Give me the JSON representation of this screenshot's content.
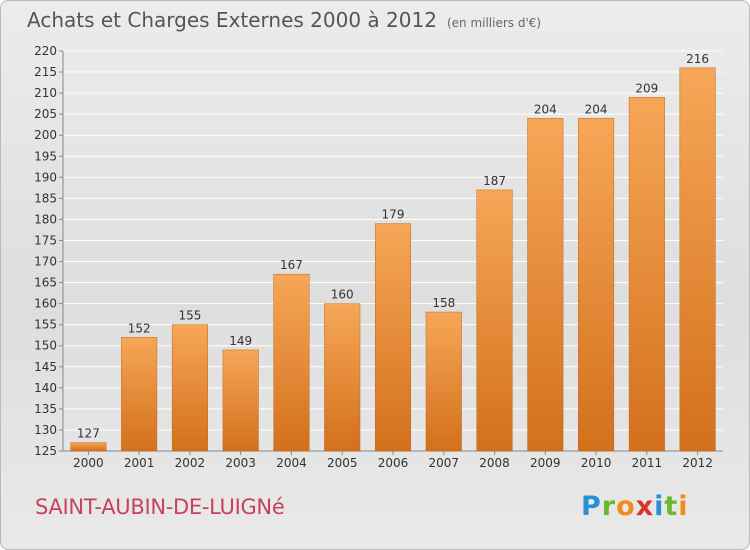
{
  "title": "Achats et Charges Externes 2000 à 2012",
  "unit": "(en milliers d'€)",
  "commune": "SAINT-AUBIN-DE-LUIGNé",
  "logo": {
    "letters": [
      "P",
      "r",
      "o",
      "x",
      "i",
      "t",
      "i"
    ],
    "colors": [
      "#2a8fd6",
      "#6bb82e",
      "#f08c1e",
      "#d9342b",
      "#2a8fd6",
      "#6bb82e",
      "#f08c1e"
    ]
  },
  "colors": {
    "bar_top": "#f6a757",
    "bar_bottom": "#d3701c",
    "grid": "#ffffff",
    "text": "#333333"
  },
  "chart_data": {
    "type": "bar",
    "categories": [
      "2000",
      "2001",
      "2002",
      "2003",
      "2004",
      "2005",
      "2006",
      "2007",
      "2008",
      "2009",
      "2010",
      "2011",
      "2012"
    ],
    "values": [
      127,
      152,
      155,
      149,
      167,
      160,
      179,
      158,
      187,
      204,
      204,
      209,
      216
    ],
    "data_labels": [
      "127",
      "152",
      "155",
      "149",
      "167",
      "160",
      "179",
      "158",
      "187",
      "204",
      "204",
      "209",
      "216"
    ],
    "yticks": [
      "125",
      "130",
      "135",
      "140",
      "145",
      "150",
      "155",
      "160",
      "165",
      "170",
      "175",
      "180",
      "185",
      "190",
      "195",
      "200",
      "205",
      "210",
      "215",
      "220"
    ],
    "ylim": [
      125,
      220
    ],
    "grid": true,
    "title": "Achats et Charges Externes 2000 à 2012",
    "xlabel": "",
    "ylabel": ""
  }
}
